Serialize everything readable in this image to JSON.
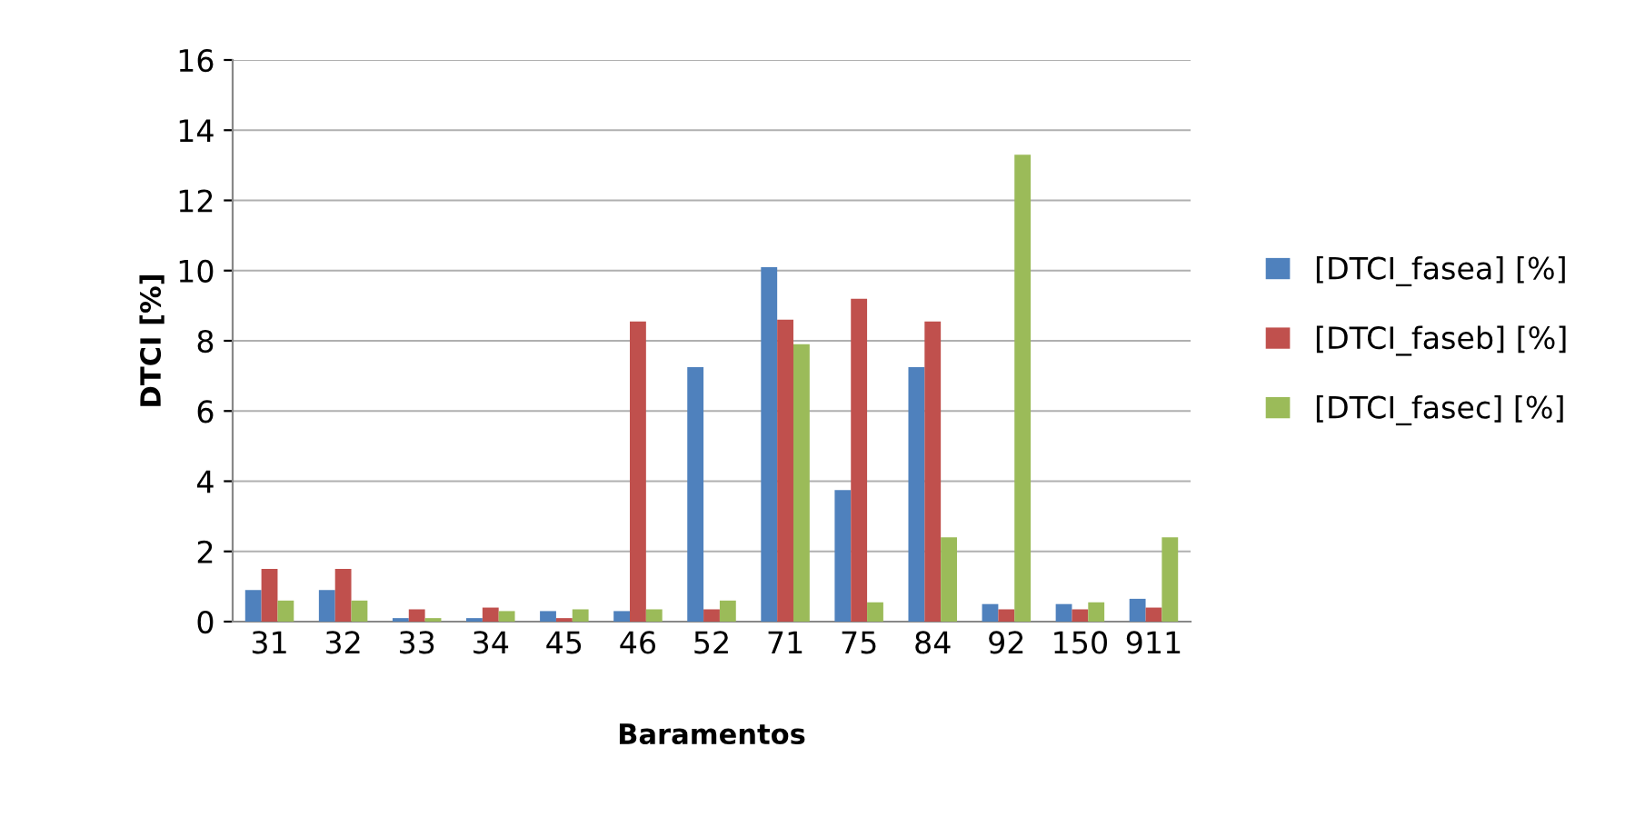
{
  "chart_data": {
    "type": "bar",
    "xlabel": "Baramentos",
    "ylabel": "DTCI [%]",
    "categories": [
      "31",
      "32",
      "33",
      "34",
      "45",
      "46",
      "52",
      "71",
      "75",
      "84",
      "92",
      "150",
      "911"
    ],
    "series": [
      {
        "name": "[DTCI_fasea] [%]",
        "color": "#4f81bd",
        "values": [
          0.9,
          0.9,
          0.1,
          0.1,
          0.3,
          0.3,
          7.25,
          10.1,
          3.75,
          7.25,
          0.5,
          0.5,
          0.65
        ]
      },
      {
        "name": "[DTCI_faseb] [%]",
        "color": "#c0504d",
        "values": [
          1.5,
          1.5,
          0.35,
          0.4,
          0.1,
          8.55,
          0.35,
          8.6,
          9.2,
          8.55,
          0.35,
          0.35,
          0.4
        ]
      },
      {
        "name": "[DTCI_fasec] [%]",
        "color": "#9bbb59",
        "values": [
          0.6,
          0.6,
          0.1,
          0.3,
          0.35,
          0.35,
          0.6,
          7.9,
          0.55,
          2.4,
          13.3,
          0.55,
          2.4
        ]
      }
    ],
    "ylim": [
      0,
      16
    ],
    "yticks": [
      0,
      2,
      4,
      6,
      8,
      10,
      12,
      14,
      16
    ],
    "grid": "y",
    "legend": "right"
  }
}
